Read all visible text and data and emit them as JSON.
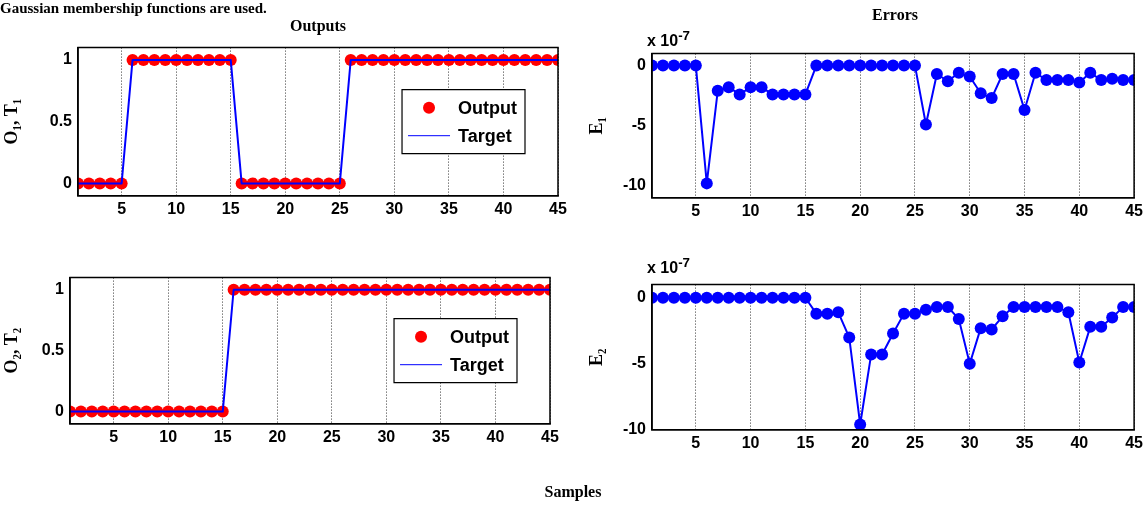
{
  "chart_data": [
    {
      "type": "line",
      "title": "Outputs",
      "ylabel": "O₁, T₁",
      "annotations": [
        "Gaussian membership functions are used."
      ],
      "x": [
        1,
        2,
        3,
        4,
        5,
        6,
        7,
        8,
        9,
        10,
        11,
        12,
        13,
        14,
        15,
        16,
        17,
        18,
        19,
        20,
        21,
        22,
        23,
        24,
        25,
        26,
        27,
        28,
        29,
        30,
        31,
        32,
        33,
        34,
        35,
        36,
        37,
        38,
        39,
        40,
        41,
        42,
        43,
        44,
        45
      ],
      "xlim": [
        1,
        45
      ],
      "xticks": [
        5,
        10,
        15,
        20,
        25,
        30,
        35,
        40,
        45
      ],
      "ylim": [
        -0.1,
        1.1
      ],
      "yticks": [
        0,
        0.5,
        1
      ],
      "grid": "x",
      "legend": "right",
      "series": [
        {
          "name": "Output",
          "type": "scatter",
          "marker": "circle",
          "color": "#ff0000",
          "values": [
            0,
            0,
            0,
            0,
            0,
            1,
            1,
            1,
            1,
            1,
            1,
            1,
            1,
            1,
            1,
            0,
            0,
            0,
            0,
            0,
            0,
            0,
            0,
            0,
            0,
            1,
            1,
            1,
            1,
            1,
            1,
            1,
            1,
            1,
            1,
            1,
            1,
            1,
            1,
            1,
            1,
            1,
            1,
            1,
            1
          ]
        },
        {
          "name": "Target",
          "type": "line",
          "color": "#0000ff",
          "values": [
            0,
            0,
            0,
            0,
            0,
            1,
            1,
            1,
            1,
            1,
            1,
            1,
            1,
            1,
            1,
            0,
            0,
            0,
            0,
            0,
            0,
            0,
            0,
            0,
            0,
            1,
            1,
            1,
            1,
            1,
            1,
            1,
            1,
            1,
            1,
            1,
            1,
            1,
            1,
            1,
            1,
            1,
            1,
            1,
            1
          ]
        }
      ]
    },
    {
      "type": "line",
      "title": "Errors",
      "ylabel": "E₁",
      "annotations": [
        "x 10$^{-7}$"
      ],
      "x": [
        1,
        2,
        3,
        4,
        5,
        6,
        7,
        8,
        9,
        10,
        11,
        12,
        13,
        14,
        15,
        16,
        17,
        18,
        19,
        20,
        21,
        22,
        23,
        24,
        25,
        26,
        27,
        28,
        29,
        30,
        31,
        32,
        33,
        34,
        35,
        36,
        37,
        38,
        39,
        40,
        41,
        42,
        43,
        44,
        45
      ],
      "xlim": [
        1,
        45
      ],
      "xticks": [
        5,
        10,
        15,
        20,
        25,
        30,
        35,
        40,
        45
      ],
      "ylim": [
        -11,
        1
      ],
      "yticks": [
        0,
        -5,
        -10
      ],
      "grid": "x",
      "marker": "circle",
      "series": [
        {
          "color": "#0000ff",
          "values": [
            0,
            0,
            0,
            0,
            0,
            -9.8,
            -2.1,
            -1.8,
            -2.4,
            -1.8,
            -1.8,
            -2.4,
            -2.4,
            -2.4,
            -2.4,
            0,
            0,
            0,
            0,
            0,
            0,
            0,
            0,
            0,
            0,
            -4.9,
            -0.7,
            -1.3,
            -0.6,
            -0.9,
            -2.3,
            -2.7,
            -0.7,
            -0.7,
            -3.7,
            -0.6,
            -1.2,
            -1.2,
            -1.2,
            -1.4,
            -0.6,
            -1.2,
            -1.1,
            -1.2,
            -1.2
          ]
        }
      ]
    },
    {
      "type": "line",
      "ylabel": "O₂, T₂",
      "xlabel": "Samples",
      "x": [
        1,
        2,
        3,
        4,
        5,
        6,
        7,
        8,
        9,
        10,
        11,
        12,
        13,
        14,
        15,
        16,
        17,
        18,
        19,
        20,
        21,
        22,
        23,
        24,
        25,
        26,
        27,
        28,
        29,
        30,
        31,
        32,
        33,
        34,
        35,
        36,
        37,
        38,
        39,
        40,
        41,
        42,
        43,
        44,
        45
      ],
      "xlim": [
        1,
        45
      ],
      "xticks": [
        5,
        10,
        15,
        20,
        25,
        30,
        35,
        40,
        45
      ],
      "ylim": [
        -0.1,
        1.1
      ],
      "yticks": [
        0,
        0.5,
        1
      ],
      "grid": "x",
      "legend": "right",
      "series": [
        {
          "name": "Output",
          "type": "scatter",
          "marker": "circle",
          "color": "#ff0000",
          "values": [
            0,
            0,
            0,
            0,
            0,
            0,
            0,
            0,
            0,
            0,
            0,
            0,
            0,
            0,
            0,
            1,
            1,
            1,
            1,
            1,
            1,
            1,
            1,
            1,
            1,
            1,
            1,
            1,
            1,
            1,
            1,
            1,
            1,
            1,
            1,
            1,
            1,
            1,
            1,
            1,
            1,
            1,
            1,
            1,
            1
          ]
        },
        {
          "name": "Target",
          "type": "line",
          "color": "#0000ff",
          "values": [
            0,
            0,
            0,
            0,
            0,
            0,
            0,
            0,
            0,
            0,
            0,
            0,
            0,
            0,
            0,
            1,
            1,
            1,
            1,
            1,
            1,
            1,
            1,
            1,
            1,
            1,
            1,
            1,
            1,
            1,
            1,
            1,
            1,
            1,
            1,
            1,
            1,
            1,
            1,
            1,
            1,
            1,
            1,
            1,
            1
          ]
        }
      ]
    },
    {
      "type": "line",
      "ylabel": "E₂",
      "annotations": [
        "x 10$^{-7}$"
      ],
      "x": [
        1,
        2,
        3,
        4,
        5,
        6,
        7,
        8,
        9,
        10,
        11,
        12,
        13,
        14,
        15,
        16,
        17,
        18,
        19,
        20,
        21,
        22,
        23,
        24,
        25,
        26,
        27,
        28,
        29,
        30,
        31,
        32,
        33,
        34,
        35,
        36,
        37,
        38,
        39,
        40,
        41,
        42,
        43,
        44,
        45
      ],
      "xlim": [
        1,
        45
      ],
      "xticks": [
        5,
        10,
        15,
        20,
        25,
        30,
        35,
        40,
        45
      ],
      "ylim": [
        -10,
        1
      ],
      "yticks": [
        0,
        -5,
        -10
      ],
      "grid": "x",
      "marker": "circle",
      "series": [
        {
          "color": "#0000ff",
          "values": [
            0,
            0,
            0,
            0,
            0,
            0,
            0,
            0,
            0,
            0,
            0,
            0,
            0,
            0,
            0,
            -1.2,
            -1.2,
            -1.1,
            -3.0,
            -9.6,
            -4.3,
            -4.3,
            -2.7,
            -1.2,
            -1.2,
            -0.9,
            -0.7,
            -0.7,
            -1.6,
            -5.0,
            -2.3,
            -2.4,
            -1.4,
            -0.7,
            -0.7,
            -0.7,
            -0.7,
            -0.7,
            -1.1,
            -4.9,
            -2.2,
            -2.2,
            -1.5,
            -0.7,
            -0.7
          ]
        }
      ]
    }
  ]
}
